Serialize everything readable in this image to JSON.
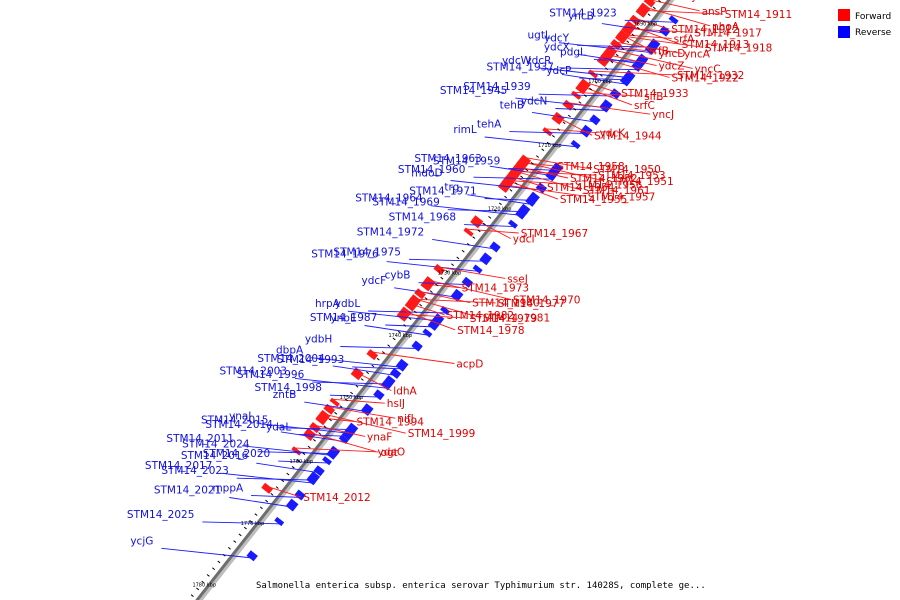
{
  "legend": [
    {
      "label": "Forward",
      "color": "#ff0000"
    },
    {
      "label": "Reverse",
      "color": "#0000ff"
    }
  ],
  "caption": "Salmonella enterica subsp. enterica serovar Typhimurium str. 14028S, complete ge...",
  "ticks": [
    {
      "label": "1690 kbp",
      "pos": 0.04
    },
    {
      "label": "1700 kbp",
      "pos": 0.135
    },
    {
      "label": "1710 kbp",
      "pos": 0.24
    },
    {
      "label": "1720 kbp",
      "pos": 0.345
    },
    {
      "label": "1730 kbp",
      "pos": 0.45
    },
    {
      "label": "1740 kbp",
      "pos": 0.553
    },
    {
      "label": "1750 kbp",
      "pos": 0.655
    },
    {
      "label": "1760 kbp",
      "pos": 0.76
    },
    {
      "label": "1770 kbp",
      "pos": 0.862
    },
    {
      "label": "1780 kbp",
      "pos": 0.963
    }
  ],
  "reverse_genes": [
    {
      "label": "STM14_1923",
      "pos": 0.02
    },
    {
      "label": "yncB",
      "pos": 0.037
    },
    {
      "label": "ydcY",
      "pos": 0.058
    },
    {
      "label": "ugtL",
      "pos": 0.07
    },
    {
      "label": "pdgL",
      "pos": 0.083
    },
    {
      "label": "ydcX",
      "pos": 0.086
    },
    {
      "label": "ydcR",
      "pos": 0.098
    },
    {
      "label": "ydcW",
      "pos": 0.11
    },
    {
      "label": "ydcP",
      "pos": 0.112
    },
    {
      "label": "STM14_1937",
      "pos": 0.122
    },
    {
      "label": "STM14_1939",
      "pos": 0.14
    },
    {
      "label": "STM14_1945",
      "pos": 0.158
    },
    {
      "label": "ydcN",
      "pos": 0.165
    },
    {
      "label": "tehB",
      "pos": 0.183
    },
    {
      "label": "tehA",
      "pos": 0.2
    },
    {
      "label": "rimL",
      "pos": 0.225
    },
    {
      "label": "STM14_1959",
      "pos": 0.262
    },
    {
      "label": "STM14_1963",
      "pos": 0.27
    },
    {
      "label": "STM14_1960",
      "pos": 0.278
    },
    {
      "label": "mdoD",
      "pos": 0.295
    },
    {
      "label": "STM14_1971",
      "pos": 0.31
    },
    {
      "label": "trg",
      "pos": 0.32
    },
    {
      "label": "STM14_1969",
      "pos": 0.33
    },
    {
      "label": "STM14_1964",
      "pos": 0.335
    },
    {
      "label": "STM14_1968",
      "pos": 0.356
    },
    {
      "label": "STM14_1972",
      "pos": 0.392
    },
    {
      "label": "STM14_1975",
      "pos": 0.41
    },
    {
      "label": "STM14_1976",
      "pos": 0.43
    },
    {
      "label": "cybB",
      "pos": 0.45
    },
    {
      "label": "ydcF",
      "pos": 0.47
    },
    {
      "label": "ydbL",
      "pos": 0.498
    },
    {
      "label": "hrpA",
      "pos": 0.51
    },
    {
      "label": "STM14_1987",
      "pos": 0.518
    },
    {
      "label": "ynbE",
      "pos": 0.535
    },
    {
      "label": "ydbH",
      "pos": 0.555
    },
    {
      "label": "dbpA",
      "pos": 0.585
    },
    {
      "label": "STM14_1993",
      "pos": 0.59
    },
    {
      "label": "STM14_2004",
      "pos": 0.6
    },
    {
      "label": "STM14_1996",
      "pos": 0.612
    },
    {
      "label": "STM14_2003",
      "pos": 0.622
    },
    {
      "label": "STM14_1998",
      "pos": 0.635
    },
    {
      "label": "zntB",
      "pos": 0.658
    },
    {
      "label": "STM14_2015",
      "pos": 0.69
    },
    {
      "label": "ynaJ",
      "pos": 0.695
    },
    {
      "label": "ydaL",
      "pos": 0.698
    },
    {
      "label": "STM14_2014",
      "pos": 0.71
    },
    {
      "label": "STM14_2024",
      "pos": 0.728
    },
    {
      "label": "STM14_2011",
      "pos": 0.73
    },
    {
      "label": "STM14_2020",
      "pos": 0.745
    },
    {
      "label": "STM14_2016",
      "pos": 0.76
    },
    {
      "label": "STM14_2023",
      "pos": 0.77
    },
    {
      "label": "STM14_2017",
      "pos": 0.778
    },
    {
      "label": "mppA",
      "pos": 0.8
    },
    {
      "label": "STM14_2021",
      "pos": 0.815
    },
    {
      "label": "STM14_2025",
      "pos": 0.845
    },
    {
      "label": "ycjG",
      "pos": 0.9
    }
  ],
  "forward_genes": [
    {
      "label": "yddE",
      "pos": 0.01
    },
    {
      "label": "ansP",
      "pos": 0.02
    },
    {
      "label": "nhoA",
      "pos": 0.03
    },
    {
      "label": "STM14_1911",
      "pos": 0.04
    },
    {
      "label": "STM14_1912",
      "pos": 0.05
    },
    {
      "label": "STM14_1913",
      "pos": 0.06
    },
    {
      "label": "STM14_1917",
      "pos": 0.07
    },
    {
      "label": "STM14_1918",
      "pos": 0.08
    },
    {
      "label": "yncD",
      "pos": 0.075
    },
    {
      "label": "srfA",
      "pos": 0.08
    },
    {
      "label": "yncA",
      "pos": 0.09
    },
    {
      "label": "yncC",
      "pos": 0.1
    },
    {
      "label": "srfB",
      "pos": 0.1
    },
    {
      "label": "ydcZ",
      "pos": 0.11
    },
    {
      "label": "STM14_1922",
      "pos": 0.115
    },
    {
      "label": "STM14_1932",
      "pos": 0.14
    },
    {
      "label": "STM14_1933",
      "pos": 0.155
    },
    {
      "label": "srfC",
      "pos": 0.16
    },
    {
      "label": "sifB",
      "pos": 0.175
    },
    {
      "label": "yncJ",
      "pos": 0.19
    },
    {
      "label": "STM14_1944",
      "pos": 0.21
    },
    {
      "label": "ydcK",
      "pos": 0.235
    },
    {
      "label": "STM14_1950",
      "pos": 0.28
    },
    {
      "label": "STM14_1951",
      "pos": 0.285
    },
    {
      "label": "STM14_1958",
      "pos": 0.29
    },
    {
      "label": "STM14_1952",
      "pos": 0.295
    },
    {
      "label": "STM14_1961",
      "pos": 0.3
    },
    {
      "label": "STM14_1953",
      "pos": 0.305
    },
    {
      "label": "STM14_1954",
      "pos": 0.31
    },
    {
      "label": "STM14_1955",
      "pos": 0.315
    },
    {
      "label": "STM14_1956",
      "pos": 0.32
    },
    {
      "label": "STM14_1957",
      "pos": 0.325
    },
    {
      "label": "ydcI",
      "pos": 0.38
    },
    {
      "label": "STM14_1967",
      "pos": 0.4
    },
    {
      "label": "sseJ",
      "pos": 0.46
    },
    {
      "label": "STM14_1970",
      "pos": 0.48
    },
    {
      "label": "STM14_1973",
      "pos": 0.49
    },
    {
      "label": "STM14_1980",
      "pos": 0.5
    },
    {
      "label": "STM14_1981",
      "pos": 0.51
    },
    {
      "label": "STM14_1977",
      "pos": 0.515
    },
    {
      "label": "STM14_1982",
      "pos": 0.52
    },
    {
      "label": "STM14_1978",
      "pos": 0.53
    },
    {
      "label": "STM14_1979",
      "pos": 0.54
    },
    {
      "label": "acpD",
      "pos": 0.6
    },
    {
      "label": "ldhA",
      "pos": 0.63
    },
    {
      "label": "hslJ",
      "pos": 0.68
    },
    {
      "label": "nifJ",
      "pos": 0.69
    },
    {
      "label": "STM14_1999",
      "pos": 0.7
    },
    {
      "label": "STM14_1994",
      "pos": 0.71
    },
    {
      "label": "ynaF",
      "pos": 0.72
    },
    {
      "label": "ydaO",
      "pos": 0.73
    },
    {
      "label": "ogt",
      "pos": 0.76
    },
    {
      "label": "STM14_2012",
      "pos": 0.82
    }
  ]
}
